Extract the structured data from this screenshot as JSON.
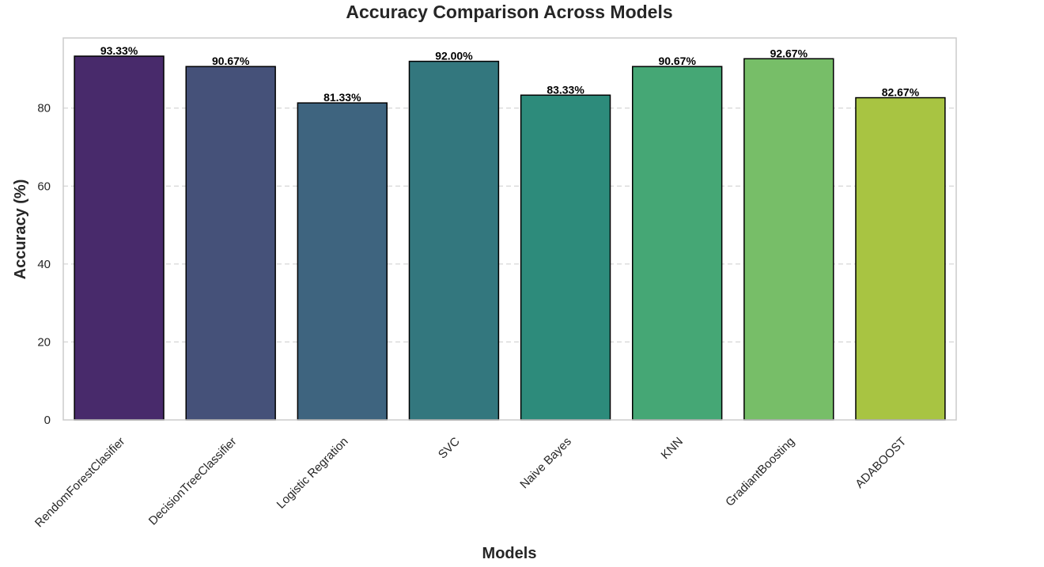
{
  "chart_data": {
    "type": "bar",
    "title": "Accuracy Comparison Across Models",
    "xlabel": "Models",
    "ylabel": "Accuracy (%)",
    "categories": [
      "RendomForestClasifier",
      "DecisionTreeClassifier",
      "Logistic Regration",
      "SVC",
      "Naive Bayes",
      "KNN",
      "GradiantBoosting",
      "ADABOOST"
    ],
    "values": [
      93.33,
      90.67,
      81.33,
      92.0,
      83.33,
      90.67,
      92.67,
      82.67
    ],
    "value_labels": [
      "93.33%",
      "90.67%",
      "81.33%",
      "92.00%",
      "83.33%",
      "90.67%",
      "92.67%",
      "82.67%"
    ],
    "colors": [
      "#482a6b",
      "#455179",
      "#3e647f",
      "#33777e",
      "#2d8b7b",
      "#45a775",
      "#77be68",
      "#a8c442"
    ],
    "ylim": [
      0,
      98
    ],
    "yticks": [
      0,
      20,
      40,
      60,
      80
    ],
    "ytick_labels": [
      "0",
      "20",
      "40",
      "60",
      "80"
    ],
    "grid": "y-dashed",
    "legend": "none"
  }
}
